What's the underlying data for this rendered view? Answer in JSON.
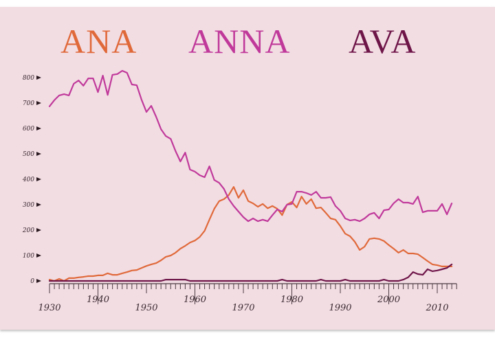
{
  "chart_data": {
    "type": "line",
    "title": "",
    "xlabel": "",
    "ylabel": "",
    "xlim": [
      1930,
      2014
    ],
    "ylim": [
      0,
      850
    ],
    "grid": false,
    "legend_position": "top",
    "y_ticks": [
      0,
      100,
      200,
      300,
      400,
      500,
      600,
      700,
      800
    ],
    "x_ticks_major": [
      1930,
      1940,
      1950,
      1960,
      1970,
      1980,
      1990,
      2000,
      2010
    ],
    "x": [
      1930,
      1931,
      1932,
      1933,
      1934,
      1935,
      1936,
      1937,
      1938,
      1939,
      1940,
      1941,
      1942,
      1943,
      1944,
      1945,
      1946,
      1947,
      1948,
      1949,
      1950,
      1951,
      1952,
      1953,
      1954,
      1955,
      1956,
      1957,
      1958,
      1959,
      1960,
      1961,
      1962,
      1963,
      1964,
      1965,
      1966,
      1967,
      1968,
      1969,
      1970,
      1971,
      1972,
      1973,
      1974,
      1975,
      1976,
      1977,
      1978,
      1979,
      1980,
      1981,
      1982,
      1983,
      1984,
      1985,
      1986,
      1987,
      1988,
      1989,
      1990,
      1991,
      1992,
      1993,
      1994,
      1995,
      1996,
      1997,
      1998,
      1999,
      2000,
      2001,
      2002,
      2003,
      2004,
      2005,
      2006,
      2007,
      2008,
      2009,
      2010,
      2011,
      2012,
      2013
    ],
    "series": [
      {
        "name": "ANA",
        "color": "#e0693a",
        "values": [
          5,
          0,
          8,
          0,
          11,
          11,
          14,
          16,
          19,
          19,
          22,
          22,
          30,
          24,
          24,
          30,
          35,
          41,
          43,
          51,
          59,
          65,
          70,
          81,
          95,
          100,
          111,
          127,
          138,
          151,
          159,
          173,
          197,
          241,
          284,
          314,
          322,
          338,
          370,
          327,
          357,
          314,
          305,
          292,
          303,
          286,
          295,
          284,
          259,
          300,
          311,
          289,
          332,
          303,
          322,
          286,
          289,
          268,
          246,
          241,
          216,
          186,
          176,
          154,
          122,
          135,
          165,
          168,
          165,
          157,
          141,
          127,
          111,
          122,
          108,
          108,
          105,
          92,
          78,
          65,
          62,
          57,
          57,
          57
        ]
      },
      {
        "name": "ANNA",
        "color": "#c0399a",
        "values": [
          687,
          711,
          730,
          735,
          730,
          776,
          789,
          768,
          797,
          797,
          743,
          808,
          732,
          811,
          814,
          827,
          819,
          773,
          770,
          713,
          665,
          689,
          646,
          597,
          570,
          559,
          511,
          470,
          505,
          438,
          430,
          416,
          408,
          451,
          397,
          386,
          362,
          322,
          295,
          273,
          251,
          235,
          246,
          235,
          241,
          235,
          259,
          281,
          273,
          300,
          303,
          351,
          351,
          346,
          338,
          351,
          327,
          327,
          330,
          295,
          276,
          246,
          238,
          241,
          235,
          246,
          262,
          268,
          246,
          278,
          281,
          305,
          322,
          308,
          308,
          303,
          332,
          270,
          276,
          276,
          276,
          303,
          262,
          305
        ]
      },
      {
        "name": "AVA",
        "color": "#6e1548",
        "values": [
          0,
          0,
          0,
          0,
          0,
          0,
          0,
          0,
          0,
          0,
          0,
          0,
          0,
          0,
          0,
          0,
          0,
          0,
          0,
          0,
          0,
          0,
          0,
          0,
          5,
          5,
          5,
          5,
          5,
          0,
          0,
          0,
          0,
          0,
          0,
          0,
          0,
          0,
          0,
          0,
          0,
          0,
          0,
          0,
          0,
          0,
          0,
          0,
          5,
          0,
          0,
          0,
          0,
          0,
          0,
          0,
          5,
          0,
          0,
          0,
          0,
          5,
          0,
          0,
          0,
          0,
          0,
          0,
          0,
          5,
          0,
          0,
          0,
          5,
          14,
          35,
          27,
          24,
          46,
          38,
          41,
          46,
          51,
          65
        ]
      }
    ]
  },
  "legend": {
    "items": [
      {
        "label": "ANA",
        "color": "#e0693a"
      },
      {
        "label": "ANNA",
        "color": "#c0399a"
      },
      {
        "label": "AVA",
        "color": "#6e1548"
      }
    ]
  }
}
